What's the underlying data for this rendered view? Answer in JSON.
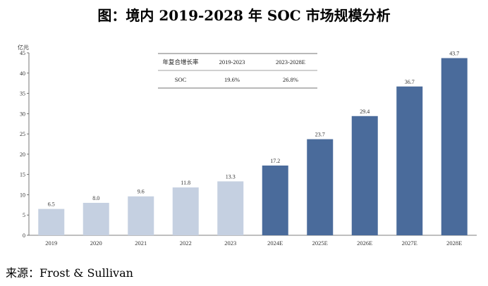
{
  "title": "图：境内 2019-2028 年 SOC 市场规模分析",
  "source_label": "来源：Frost & Sullivan",
  "cagr_table": {
    "headers": [
      "年复合增长率",
      "2019-2023",
      "2023-2028E"
    ],
    "row": [
      "SOC",
      "19.6%",
      "26.8%"
    ]
  },
  "chart_data": {
    "type": "bar",
    "ylabel": "亿元",
    "ylim": [
      0,
      45
    ],
    "yticks": [
      0,
      5,
      10,
      15,
      20,
      25,
      30,
      35,
      40,
      45
    ],
    "categories": [
      "2019",
      "2020",
      "2021",
      "2022",
      "2023",
      "2024E",
      "2025E",
      "2026E",
      "2027E",
      "2028E"
    ],
    "values": [
      6.5,
      8.0,
      9.6,
      11.8,
      13.3,
      17.2,
      23.7,
      29.4,
      36.7,
      43.7
    ],
    "value_labels": [
      "6.5",
      "8.0",
      "9.6",
      "11.8",
      "13.3",
      "17.2",
      "23.7",
      "29.4",
      "36.7",
      "43.7"
    ],
    "colors": {
      "historical": "#c5d0e1",
      "forecast": "#4a6b9b",
      "axis": "#555555"
    }
  }
}
